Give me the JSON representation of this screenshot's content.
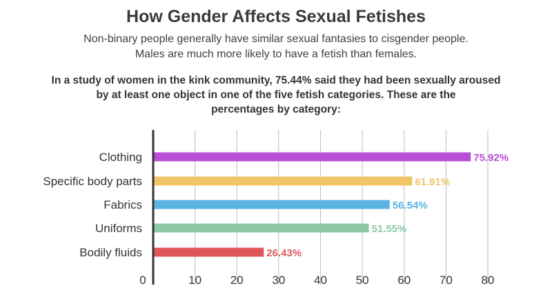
{
  "header": {
    "title": "How Gender Affects Sexual Fetishes",
    "subtitle_lines": [
      "Non-binary people generally have similar sexual fantasies to cisgender people.",
      "Males are much more likely to have a fetish than females."
    ],
    "intro_lines": [
      "In a study of women in the kink community, 75.44% said they had been sexually aroused",
      "by at least one object in one of the five fetish categories. These are the",
      "percentages by category:"
    ]
  },
  "chart_data": {
    "type": "bar",
    "orientation": "horizontal",
    "categories": [
      "Clothing",
      "Specific body parts",
      "Fabrics",
      "Uniforms",
      "Bodily fluids"
    ],
    "values": [
      75.92,
      61.91,
      56.54,
      51.55,
      26.43
    ],
    "value_labels": [
      "75.92%",
      "61.91%",
      "56.54%",
      "51.55%",
      "26.43%"
    ],
    "colors": [
      "#b94fd6",
      "#f0c56a",
      "#5cb4e3",
      "#8fc8a4",
      "#e0565b"
    ],
    "xlim": [
      0,
      80
    ],
    "xticks": [
      "0",
      "10",
      "20",
      "30",
      "40",
      "50",
      "60",
      "70",
      "80"
    ],
    "grid": true
  }
}
